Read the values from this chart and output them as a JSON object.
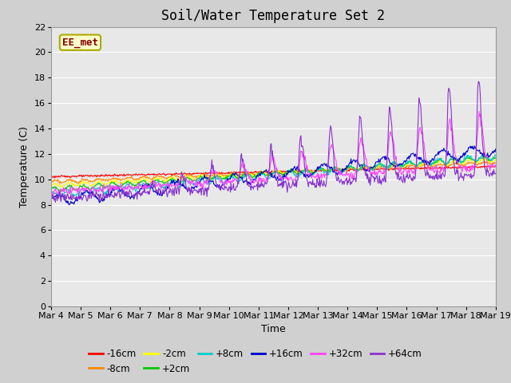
{
  "title": "Soil/Water Temperature Set 2",
  "xlabel": "Time",
  "ylabel": "Temperature (C)",
  "xlim": [
    0,
    15
  ],
  "ylim": [
    0,
    22
  ],
  "yticks": [
    0,
    2,
    4,
    6,
    8,
    10,
    12,
    14,
    16,
    18,
    20,
    22
  ],
  "xtick_labels": [
    "Mar 4",
    "Mar 5",
    "Mar 6",
    "Mar 7",
    "Mar 8",
    "Mar 9",
    "Mar 10",
    "Mar 11",
    "Mar 12",
    "Mar 13",
    "Mar 14",
    "Mar 15",
    "Mar 16",
    "Mar 17",
    "Mar 18",
    "Mar 19"
  ],
  "series_colors": [
    "#ff0000",
    "#ff8800",
    "#ffff00",
    "#00cc00",
    "#00cccc",
    "#0000cc",
    "#ff44ff",
    "#8833cc"
  ],
  "series_labels": [
    "-16cm",
    "-8cm",
    "-2cm",
    "+2cm",
    "+8cm",
    "+16cm",
    "+32cm",
    "+64cm"
  ],
  "annotation_text": "EE_met",
  "annotation_bg": "#ffffcc",
  "annotation_border": "#aaaa00",
  "annotation_text_color": "#880000",
  "plot_bg_color": "#e8e8e8",
  "fig_bg_color": "#d0d0d0",
  "grid_color": "#ffffff",
  "title_fontsize": 12,
  "axis_fontsize": 9,
  "tick_fontsize": 8,
  "legend_fontsize": 8.5
}
